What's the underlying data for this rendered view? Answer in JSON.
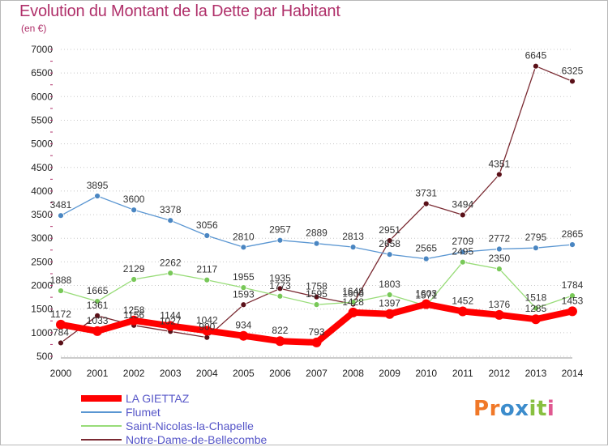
{
  "title": "Evolution du Montant de la Dette par Habitant",
  "subtitle": "(en €)",
  "colors": {
    "title": "#b0306a",
    "axis_text": "#222222",
    "grid": "#c8c8c8",
    "legend_text": "#5656c8"
  },
  "chart_data": {
    "type": "line",
    "x": [
      2000,
      2001,
      2002,
      2003,
      2004,
      2005,
      2006,
      2007,
      2008,
      2009,
      2010,
      2011,
      2012,
      2013,
      2014
    ],
    "ylim": [
      500,
      7000
    ],
    "yticks": [
      500,
      1000,
      1500,
      2000,
      2500,
      3000,
      3500,
      4000,
      4500,
      5000,
      5500,
      6000,
      6500,
      7000
    ],
    "grid": "horizontal dotted",
    "legend": "bottom-left",
    "series": [
      {
        "name": "Notre-Dame-de-Bellecombe",
        "color": "#7a2a32",
        "marker": "#5a1018",
        "width": 1.3,
        "values": [
          784,
          1361,
          1156,
          1027,
          900,
          1593,
          1935,
          1758,
          1606,
          2951,
          3731,
          3494,
          4351,
          6645,
          6325
        ],
        "labels": [
          "784",
          "1361",
          "1156",
          "1027",
          "900",
          "1593",
          "1935",
          "1758",
          "1606",
          "2951",
          "3731",
          "3494",
          "4351",
          "6645",
          "6325"
        ]
      },
      {
        "name": "Saint-Nicolas-la-Chapelle",
        "color": "#98dc78",
        "marker": "#78c858",
        "width": 1.3,
        "values": [
          1888,
          1665,
          2129,
          2262,
          2117,
          1955,
          1773,
          1595,
          1648,
          1803,
          1571,
          2495,
          2350,
          1518,
          1784
        ],
        "labels": [
          "1888",
          "1665",
          "2129",
          "2262",
          "2117",
          "1955",
          "1773",
          "1595",
          "1648",
          "1803",
          "1571",
          "2495",
          "2350",
          "1518",
          "1784"
        ]
      },
      {
        "name": "Flumet",
        "color": "#5a96d2",
        "marker": "#4a86c2",
        "width": 1.3,
        "values": [
          3481,
          3895,
          3600,
          3378,
          3056,
          2810,
          2957,
          2889,
          2813,
          2658,
          2565,
          2709,
          2772,
          2795,
          2865
        ],
        "labels": [
          "3481",
          "3895",
          "3600",
          "3378",
          "3056",
          "2810",
          "2957",
          "2889",
          "2813",
          "2658",
          "2565",
          "2709",
          "2772",
          "2795",
          "2865"
        ]
      },
      {
        "name": "LA GIETTAZ",
        "color": "#ff0000",
        "marker": "#ff0000",
        "width": 8,
        "values": [
          1172,
          1033,
          1258,
          1144,
          1042,
          934,
          822,
          793,
          1428,
          1397,
          1603,
          1452,
          1376,
          1285,
          1453
        ],
        "labels": [
          "1172",
          "1033",
          "1258",
          "1144",
          "1042",
          "934",
          "822",
          "793",
          "1428",
          "1397",
          "1603",
          "1452",
          "1376",
          "1285",
          "1453"
        ]
      }
    ]
  },
  "legend_order": [
    "LA GIETTAZ",
    "Flumet",
    "Saint-Nicolas-la-Chapelle",
    "Notre-Dame-de-Bellecombe"
  ],
  "logo": {
    "letters": [
      "P",
      "r",
      "o",
      "x",
      "i",
      "t",
      "i"
    ],
    "colors": [
      "#f07828",
      "#f07828",
      "#3c8ccc",
      "#3c8ccc",
      "#88c040",
      "#88c040",
      "#e05890"
    ]
  }
}
